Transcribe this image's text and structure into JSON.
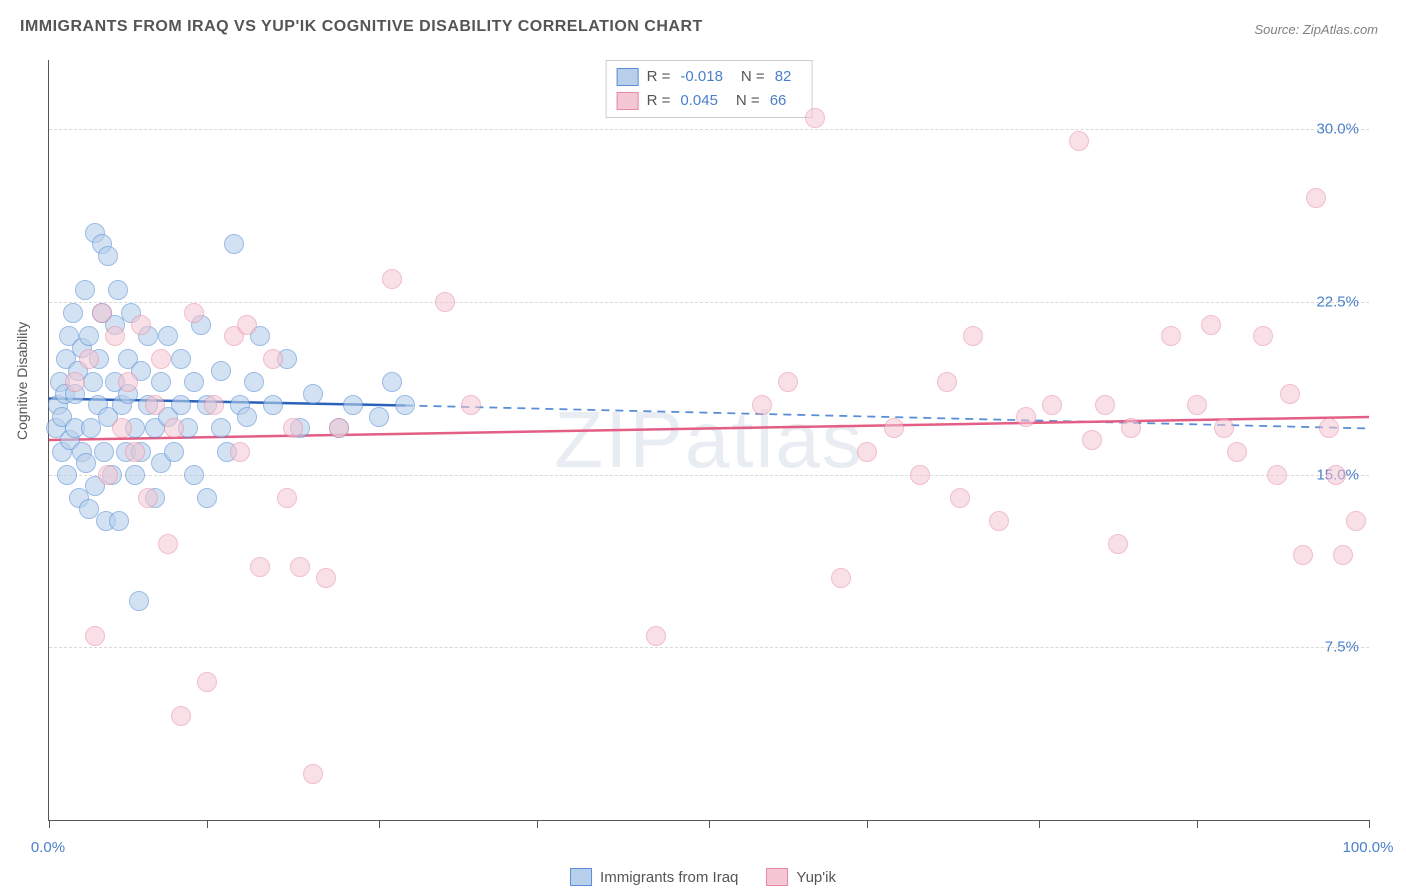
{
  "title": "IMMIGRANTS FROM IRAQ VS YUP'IK COGNITIVE DISABILITY CORRELATION CHART",
  "source": "Source: ZipAtlas.com",
  "watermark": "ZIPatlas",
  "ylabel": "Cognitive Disability",
  "chart": {
    "type": "scatter",
    "background_color": "#ffffff",
    "grid_color": "#d8d8d8",
    "axis_color": "#555555",
    "tick_label_color": "#4a7fc9",
    "xlim": [
      0,
      100
    ],
    "ylim": [
      0,
      33
    ],
    "yticks": [
      7.5,
      15.0,
      22.5,
      30.0
    ],
    "ytick_labels": [
      "7.5%",
      "15.0%",
      "22.5%",
      "30.0%"
    ],
    "xtick_positions": [
      0,
      12,
      25,
      37,
      50,
      62,
      75,
      87,
      100
    ],
    "xtick_labels_shown": {
      "0": "0.0%",
      "100": "100.0%"
    },
    "marker_radius": 9,
    "marker_border_width": 1.5,
    "series": [
      {
        "name": "Immigrants from Iraq",
        "fill_color": "#b7cfea",
        "fill_opacity": 0.6,
        "border_color": "#5a8fd6",
        "line_color": "#2a62b8",
        "dash_color": "#5a8fd6",
        "R": "-0.018",
        "N": "82",
        "trend": {
          "x1": 0,
          "y1": 18.3,
          "x2": 27,
          "y2": 18.0,
          "dash_x2": 100,
          "dash_y2": 17.0
        },
        "points": [
          [
            0.5,
            17
          ],
          [
            0.7,
            18
          ],
          [
            0.8,
            19
          ],
          [
            1,
            17.5
          ],
          [
            1,
            16
          ],
          [
            1.2,
            18.5
          ],
          [
            1.3,
            20
          ],
          [
            1.4,
            15
          ],
          [
            1.5,
            21
          ],
          [
            1.6,
            16.5
          ],
          [
            1.8,
            22
          ],
          [
            2,
            17
          ],
          [
            2,
            18.5
          ],
          [
            2.2,
            19.5
          ],
          [
            2.3,
            14
          ],
          [
            2.5,
            20.5
          ],
          [
            2.5,
            16
          ],
          [
            2.7,
            23
          ],
          [
            2.8,
            15.5
          ],
          [
            3,
            21
          ],
          [
            3,
            13.5
          ],
          [
            3.2,
            17
          ],
          [
            3.3,
            19
          ],
          [
            3.5,
            25.5
          ],
          [
            3.5,
            14.5
          ],
          [
            3.7,
            18
          ],
          [
            3.8,
            20
          ],
          [
            4,
            22
          ],
          [
            4,
            25
          ],
          [
            4.2,
            16
          ],
          [
            4.3,
            13
          ],
          [
            4.5,
            17.5
          ],
          [
            4.5,
            24.5
          ],
          [
            4.8,
            15
          ],
          [
            5,
            19
          ],
          [
            5,
            21.5
          ],
          [
            5.2,
            23
          ],
          [
            5.3,
            13
          ],
          [
            5.5,
            18
          ],
          [
            5.8,
            16
          ],
          [
            6,
            20
          ],
          [
            6,
            18.5
          ],
          [
            6.2,
            22
          ],
          [
            6.5,
            15
          ],
          [
            6.5,
            17
          ],
          [
            6.8,
            9.5
          ],
          [
            7,
            19.5
          ],
          [
            7,
            16
          ],
          [
            7.5,
            21
          ],
          [
            7.5,
            18
          ],
          [
            8,
            17
          ],
          [
            8,
            14
          ],
          [
            8.5,
            19
          ],
          [
            8.5,
            15.5
          ],
          [
            9,
            21
          ],
          [
            9,
            17.5
          ],
          [
            9.5,
            16
          ],
          [
            10,
            18
          ],
          [
            10,
            20
          ],
          [
            10.5,
            17
          ],
          [
            11,
            19
          ],
          [
            11,
            15
          ],
          [
            11.5,
            21.5
          ],
          [
            12,
            18
          ],
          [
            12,
            14
          ],
          [
            13,
            17
          ],
          [
            13,
            19.5
          ],
          [
            13.5,
            16
          ],
          [
            14,
            25
          ],
          [
            14.5,
            18
          ],
          [
            15,
            17.5
          ],
          [
            15.5,
            19
          ],
          [
            16,
            21
          ],
          [
            17,
            18
          ],
          [
            18,
            20
          ],
          [
            19,
            17
          ],
          [
            20,
            18.5
          ],
          [
            22,
            17
          ],
          [
            23,
            18
          ],
          [
            25,
            17.5
          ],
          [
            26,
            19
          ],
          [
            27,
            18
          ]
        ]
      },
      {
        "name": "Yup'ik",
        "fill_color": "#f5c6d3",
        "fill_opacity": 0.55,
        "border_color": "#e68aa3",
        "line_color": "#e35d84",
        "dash_color": "#e68aa3",
        "R": "0.045",
        "N": "66",
        "trend": {
          "x1": 0,
          "y1": 16.5,
          "x2": 100,
          "y2": 17.5
        },
        "points": [
          [
            2,
            19
          ],
          [
            3,
            20
          ],
          [
            3.5,
            8
          ],
          [
            4,
            22
          ],
          [
            4.5,
            15
          ],
          [
            5,
            21
          ],
          [
            5.5,
            17
          ],
          [
            6,
            19
          ],
          [
            6.5,
            16
          ],
          [
            7,
            21.5
          ],
          [
            7.5,
            14
          ],
          [
            8,
            18
          ],
          [
            8.5,
            20
          ],
          [
            9,
            12
          ],
          [
            9.5,
            17
          ],
          [
            10,
            4.5
          ],
          [
            11,
            22
          ],
          [
            12,
            6
          ],
          [
            12.5,
            18
          ],
          [
            14,
            21
          ],
          [
            14.5,
            16
          ],
          [
            15,
            21.5
          ],
          [
            16,
            11
          ],
          [
            17,
            20
          ],
          [
            18,
            14
          ],
          [
            18.5,
            17
          ],
          [
            19,
            11
          ],
          [
            20,
            2
          ],
          [
            21,
            10.5
          ],
          [
            22,
            17
          ],
          [
            26,
            23.5
          ],
          [
            30,
            22.5
          ],
          [
            32,
            18
          ],
          [
            46,
            8
          ],
          [
            54,
            18
          ],
          [
            56,
            19
          ],
          [
            58,
            30.5
          ],
          [
            60,
            10.5
          ],
          [
            62,
            16
          ],
          [
            64,
            17
          ],
          [
            66,
            15
          ],
          [
            68,
            19
          ],
          [
            69,
            14
          ],
          [
            70,
            21
          ],
          [
            72,
            13
          ],
          [
            74,
            17.5
          ],
          [
            76,
            18
          ],
          [
            78,
            29.5
          ],
          [
            79,
            16.5
          ],
          [
            80,
            18
          ],
          [
            81,
            12
          ],
          [
            82,
            17
          ],
          [
            85,
            21
          ],
          [
            87,
            18
          ],
          [
            88,
            21.5
          ],
          [
            89,
            17
          ],
          [
            90,
            16
          ],
          [
            92,
            21
          ],
          [
            93,
            15
          ],
          [
            94,
            18.5
          ],
          [
            95,
            11.5
          ],
          [
            96,
            27
          ],
          [
            97,
            17
          ],
          [
            97.5,
            15
          ],
          [
            98,
            11.5
          ],
          [
            99,
            13
          ]
        ]
      }
    ]
  },
  "legend_top": {
    "R_label": "R =",
    "N_label": "N ="
  },
  "legend_bottom": {
    "items": [
      "Immigrants from Iraq",
      "Yup'ik"
    ]
  }
}
